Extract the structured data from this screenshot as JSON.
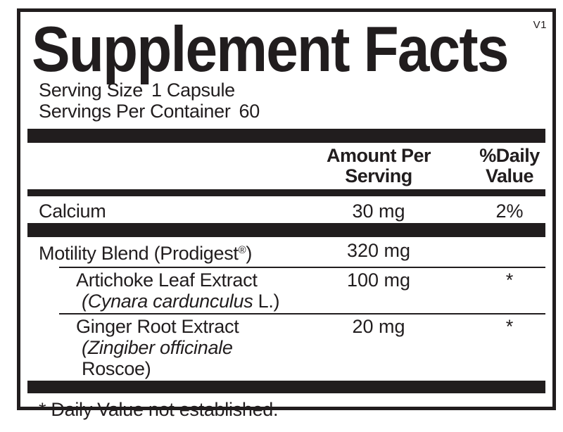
{
  "version_tag": "V1",
  "title": "Supplement Facts",
  "serving": {
    "size_label": "Serving Size",
    "size_value": "1 Capsule",
    "per_container_label": "Servings Per Container",
    "per_container_value": "60"
  },
  "table": {
    "header": {
      "amount_line1": "Amount Per",
      "amount_line2": "Serving",
      "dv_line1": "%Daily",
      "dv_line2": "Value"
    },
    "rows": [
      {
        "name": "Calcium",
        "amount": "30 mg",
        "dv": "2%"
      },
      {
        "name_prefix": "Motility Blend (Prodigest",
        "name_sup": "®",
        "name_suffix": ")",
        "amount": "320 mg",
        "dv": ""
      },
      {
        "name": "Artichoke Leaf Extract",
        "latin_italic": "(Cynara cardunculus",
        "latin_regular": " L.)",
        "amount": "100 mg",
        "dv": "*"
      },
      {
        "name": "Ginger Root Extract",
        "latin_italic": "(Zingiber officinale",
        "latin_regular": " Roscoe)",
        "amount": "20 mg",
        "dv": "*"
      }
    ]
  },
  "footnote": "* Daily Value not established.",
  "colors": {
    "ink": "#211d1e",
    "bar": "#211d1e",
    "border": "#211d1e",
    "background": "#ffffff"
  }
}
